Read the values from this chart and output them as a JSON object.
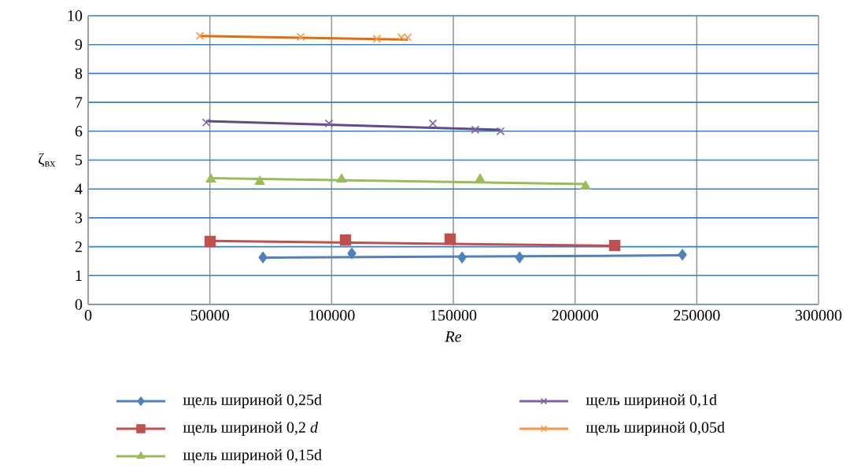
{
  "chart_data": {
    "type": "scatter",
    "xlabel": "*Re*",
    "ylabel": "ζ$_{вх}$",
    "xlim": [
      0,
      300000
    ],
    "xticks": [
      0,
      50000,
      100000,
      150000,
      200000,
      250000,
      300000
    ],
    "ylim": [
      0,
      10
    ],
    "yticks": [
      0,
      1,
      2,
      3,
      4,
      5,
      6,
      7,
      8,
      9,
      10
    ],
    "grid": true,
    "legend": "bottom",
    "series": [
      {
        "name": "щель шириной 0,25d",
        "marker": "diamond",
        "color": "#4f81bd",
        "x": [
          71800,
          108300,
          153600,
          177200,
          244100
        ],
        "values": [
          1.63,
          1.77,
          1.63,
          1.63,
          1.72
        ]
      },
      {
        "name": "щель шириной 0,2 *d*",
        "marker": "square",
        "color": "#c0504d",
        "x": [
          50100,
          105700,
          148700,
          216300
        ],
        "values": [
          2.18,
          2.23,
          2.26,
          2.04
        ]
      },
      {
        "name": "щель шириной 0,15d",
        "marker": "triangle",
        "color": "#9bbb59",
        "x": [
          50400,
          70500,
          104100,
          161000,
          204300
        ],
        "values": [
          4.33,
          4.25,
          4.33,
          4.33,
          4.09
        ]
      },
      {
        "name": "щель шириной 0,1d",
        "marker": "cross",
        "color": "#8064a2",
        "x": [
          48500,
          98900,
          141600,
          159000,
          169400
        ],
        "values": [
          6.3,
          6.27,
          6.27,
          6.05,
          6.0
        ]
      },
      {
        "name": "щель шириной 0,05d",
        "marker": "cross",
        "color": "#f79646",
        "x": [
          45900,
          87300,
          118600,
          128700,
          131300
        ],
        "values": [
          9.3,
          9.27,
          9.2,
          9.25,
          9.25
        ]
      },
      {
        "type": "line",
        "marker": "none",
        "color": "#4f81bd",
        "x": [
          71800,
          244100
        ],
        "values": [
          1.62,
          1.7
        ]
      },
      {
        "type": "line",
        "marker": "none",
        "color": "#c0504d",
        "x": [
          50100,
          216300
        ],
        "values": [
          2.2,
          2.03
        ]
      },
      {
        "type": "line",
        "marker": "none",
        "color": "#9bbb59",
        "x": [
          50400,
          204300
        ],
        "values": [
          4.37,
          4.17
        ]
      },
      {
        "type": "line",
        "marker": "none",
        "color": "#5f4b8b",
        "x": [
          48500,
          169400
        ],
        "values": [
          6.35,
          6.05
        ]
      },
      {
        "type": "line",
        "marker": "none",
        "color": "#e46c0a",
        "x": [
          45900,
          131300
        ],
        "values": [
          9.3,
          9.17
        ]
      }
    ]
  }
}
